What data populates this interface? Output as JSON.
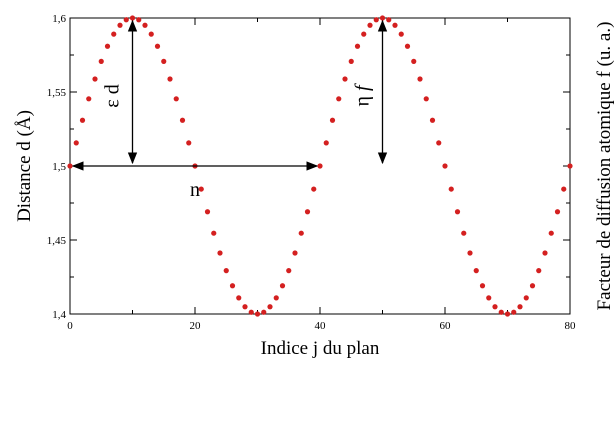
{
  "chart_data": {
    "type": "scatter",
    "xlabel": "Indice j du plan",
    "ylabel": "Distance d (Å)",
    "y2label": "Facteur de diffusion atomique f (u. a.)",
    "xlim": [
      0,
      80
    ],
    "ylim": [
      1.4,
      1.6
    ],
    "x_ticks": [
      0,
      20,
      40,
      60,
      80
    ],
    "y_ticks": [
      1.4,
      1.45,
      1.5,
      1.55,
      1.6
    ],
    "y_tick_labels": [
      "1,4",
      "1,45",
      "1,5",
      "1,55",
      "1,6"
    ],
    "marker_color": "#d42020",
    "grid": false,
    "series": [
      {
        "x": [
          0,
          1,
          2,
          3,
          4,
          5,
          6,
          7,
          8,
          9,
          10,
          11,
          12,
          13,
          14,
          15,
          16,
          17,
          18,
          19,
          20,
          21,
          22,
          23,
          24,
          25,
          26,
          27,
          28,
          29,
          30,
          31,
          32,
          33,
          34,
          35,
          36,
          37,
          38,
          39,
          40,
          41,
          42,
          43,
          44,
          45,
          46,
          47,
          48,
          49,
          50,
          51,
          52,
          53,
          54,
          55,
          56,
          57,
          58,
          59,
          60,
          61,
          62,
          63,
          64,
          65,
          66,
          67,
          68,
          69,
          70,
          71,
          72,
          73,
          74,
          75,
          76,
          77,
          78,
          79,
          80
        ],
        "y": [
          1.5,
          1.5156,
          1.5309,
          1.5454,
          1.5588,
          1.5707,
          1.5809,
          1.5891,
          1.5951,
          1.5988,
          1.6,
          1.5988,
          1.5951,
          1.5891,
          1.5809,
          1.5707,
          1.5588,
          1.5454,
          1.5309,
          1.5156,
          1.5,
          1.4844,
          1.4691,
          1.4546,
          1.4412,
          1.4293,
          1.4191,
          1.4109,
          1.4049,
          1.4012,
          1.4,
          1.4012,
          1.4049,
          1.4109,
          1.4191,
          1.4293,
          1.4412,
          1.4546,
          1.4691,
          1.4844,
          1.5,
          1.5156,
          1.5309,
          1.5454,
          1.5588,
          1.5707,
          1.5809,
          1.5891,
          1.5951,
          1.5988,
          1.6,
          1.5988,
          1.5951,
          1.5891,
          1.5809,
          1.5707,
          1.5588,
          1.5454,
          1.5309,
          1.5156,
          1.5,
          1.4844,
          1.4691,
          1.4546,
          1.4412,
          1.4293,
          1.4191,
          1.4109,
          1.4049,
          1.4012,
          1.4,
          1.4012,
          1.4049,
          1.4109,
          1.4191,
          1.4293,
          1.4412,
          1.4546,
          1.4691,
          1.4844,
          1.5
        ]
      }
    ],
    "annotations": [
      {
        "text": "ε d",
        "arrow": "vertical double-headed",
        "from": [
          10,
          1.5
        ],
        "to": [
          10,
          1.6
        ]
      },
      {
        "text": "η",
        "italic_suffix": "f",
        "arrow": "vertical double-headed",
        "from": [
          50,
          1.5
        ],
        "to": [
          50,
          1.6
        ]
      },
      {
        "text": "n",
        "arrow": "horizontal double-headed",
        "from": [
          0,
          1.5
        ],
        "to": [
          40,
          1.5
        ]
      }
    ]
  }
}
